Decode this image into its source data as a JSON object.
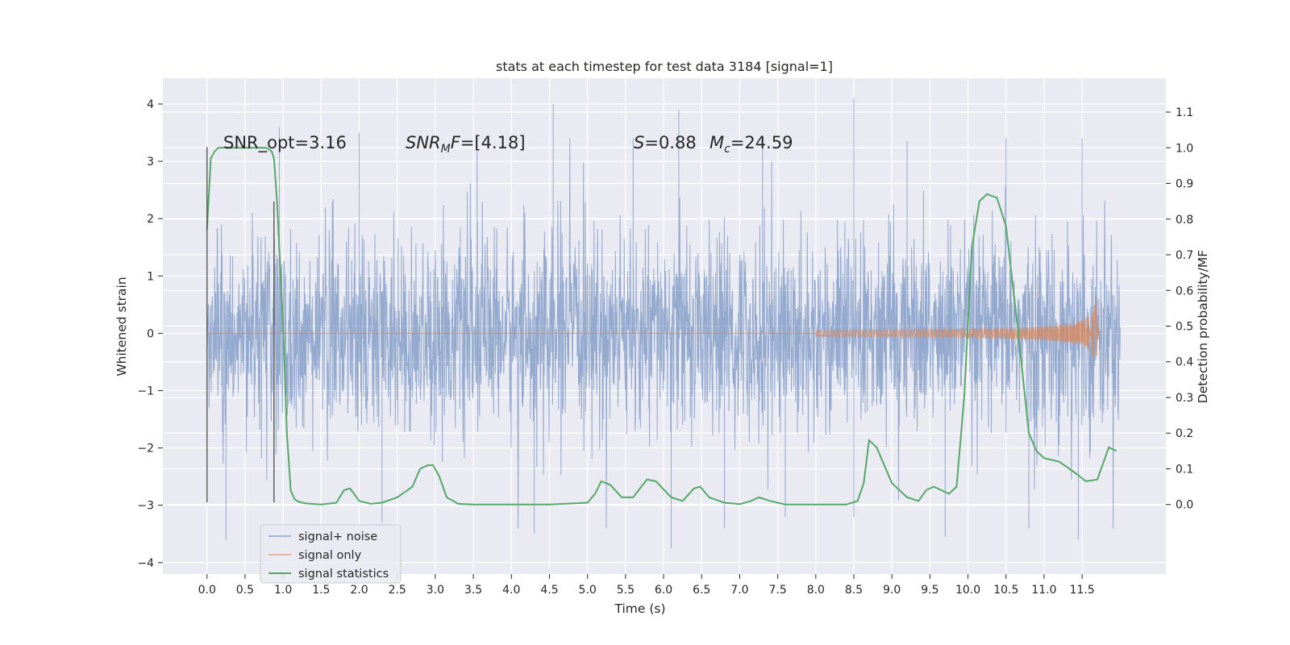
{
  "chart_data": {
    "type": "line",
    "title": "stats at each timestep for test data 3184 [signal=1]",
    "xlabel": "Time (s)",
    "ylabel_left": "Whitened strain",
    "ylabel_right": "Detection probability/MF",
    "xlim": [
      -0.58,
      12.6
    ],
    "ylim_left": [
      -4.2,
      4.45
    ],
    "ylim_right": [
      -0.195,
      1.195
    ],
    "x_ticks": [
      "0.0",
      "0.5",
      "1.0",
      "1.5",
      "2.0",
      "2.5",
      "3.0",
      "3.5",
      "4.0",
      "4.5",
      "5.0",
      "5.5",
      "6.0",
      "6.5",
      "7.0",
      "7.5",
      "8.0",
      "8.5",
      "9.0",
      "9.5",
      "10.0",
      "10.5",
      "11.0",
      "11.5"
    ],
    "y_left_ticks": [
      "4",
      "3",
      "2",
      "1",
      "0",
      "−1",
      "−2",
      "−3",
      "−4"
    ],
    "y_right_ticks": [
      "1.1",
      "1.0",
      "0.9",
      "0.8",
      "0.7",
      "0.6",
      "0.5",
      "0.4",
      "0.3",
      "0.2",
      "0.1",
      "0.0"
    ],
    "grid": true,
    "legend_position": "lower-left",
    "background_color": "#eaeaf2",
    "annotations": {
      "snr_opt": "SNR_opt=3.16",
      "snr_mf_italic": "SNR",
      "snr_mf_sub": "M",
      "snr_mf_italic2": "F",
      "snr_mf_value": "=[4.18]",
      "s_label": "S",
      "s_value": "=0.88",
      "mc_label": "M",
      "mc_sub": "c",
      "mc_value": "=24.59"
    },
    "markers": [
      {
        "x": 0.0,
        "y_top": 3.25,
        "y_bottom": -2.95
      },
      {
        "x": 0.88,
        "y_top": 2.3,
        "y_bottom": -2.95
      }
    ],
    "series": [
      {
        "name": "signal+ noise",
        "axis": "left",
        "color": "#4c72b0",
        "x_range": [
          0.0,
          12.0
        ],
        "typical_envelope": [
          -1.7,
          1.7
        ],
        "peaks_up": [
          [
            4.55,
            4.0
          ],
          [
            8.5,
            4.1
          ],
          [
            6.2,
            3.9
          ],
          [
            0.95,
            3.6
          ],
          [
            2.0,
            3.5
          ],
          [
            3.55,
            3.4
          ],
          [
            11.5,
            3.4
          ],
          [
            10.5,
            3.4
          ],
          [
            7.3,
            3.4
          ],
          [
            9.2,
            3.35
          ],
          [
            5.6,
            3.4
          ]
        ],
        "peaks_down": [
          [
            0.25,
            -3.6
          ],
          [
            6.1,
            -3.75
          ],
          [
            9.7,
            -3.55
          ],
          [
            11.45,
            -3.6
          ],
          [
            4.3,
            -3.5
          ],
          [
            10.8,
            -3.4
          ],
          [
            6.8,
            -3.4
          ],
          [
            2.3,
            -3.3
          ],
          [
            7.6,
            -3.2
          ],
          [
            8.5,
            -3.2
          ]
        ]
      },
      {
        "name": "signal only",
        "axis": "left",
        "color": "#dd8452",
        "x_range": [
          0.0,
          11.72
        ],
        "chirp": {
          "start": 8.0,
          "peak_time": 11.68,
          "peak_amplitude": 0.75
        }
      },
      {
        "name": "signal statistics",
        "axis": "right",
        "color": "#55a868",
        "x": [
          0.0,
          0.05,
          0.1,
          0.15,
          0.2,
          0.3,
          0.4,
          0.6,
          0.78,
          0.85,
          0.88,
          0.92,
          0.95,
          1.0,
          1.05,
          1.1,
          1.15,
          1.2,
          1.3,
          1.5,
          1.7,
          1.8,
          1.88,
          2.0,
          2.15,
          2.3,
          2.5,
          2.7,
          2.8,
          2.9,
          2.97,
          3.05,
          3.15,
          3.3,
          3.5,
          4.0,
          4.5,
          4.8,
          5.0,
          5.1,
          5.18,
          5.3,
          5.45,
          5.6,
          5.78,
          5.9,
          6.1,
          6.25,
          6.4,
          6.48,
          6.6,
          6.8,
          7.0,
          7.15,
          7.25,
          7.4,
          7.6,
          8.0,
          8.4,
          8.55,
          8.63,
          8.7,
          8.8,
          9.0,
          9.2,
          9.35,
          9.45,
          9.55,
          9.65,
          9.75,
          9.85,
          9.95,
          10.05,
          10.15,
          10.25,
          10.38,
          10.5,
          10.65,
          10.8,
          10.9,
          11.0,
          11.2,
          11.4,
          11.55,
          11.7,
          11.85,
          11.95
        ],
        "values": [
          0.77,
          0.97,
          0.99,
          1.0,
          1.0,
          1.0,
          1.0,
          1.0,
          1.0,
          0.99,
          0.97,
          0.85,
          0.72,
          0.5,
          0.2,
          0.04,
          0.015,
          0.008,
          0.003,
          0.0,
          0.005,
          0.04,
          0.045,
          0.01,
          0.002,
          0.005,
          0.02,
          0.05,
          0.1,
          0.11,
          0.11,
          0.08,
          0.02,
          0.002,
          0.0,
          0.0,
          0.0,
          0.003,
          0.005,
          0.03,
          0.065,
          0.055,
          0.02,
          0.02,
          0.07,
          0.065,
          0.02,
          0.01,
          0.045,
          0.05,
          0.02,
          0.005,
          0.001,
          0.01,
          0.02,
          0.01,
          0.0,
          0.0,
          0.0,
          0.01,
          0.06,
          0.18,
          0.16,
          0.06,
          0.02,
          0.01,
          0.04,
          0.05,
          0.04,
          0.03,
          0.05,
          0.3,
          0.72,
          0.85,
          0.87,
          0.86,
          0.78,
          0.5,
          0.2,
          0.15,
          0.13,
          0.12,
          0.09,
          0.065,
          0.07,
          0.16,
          0.15
        ]
      }
    ]
  }
}
